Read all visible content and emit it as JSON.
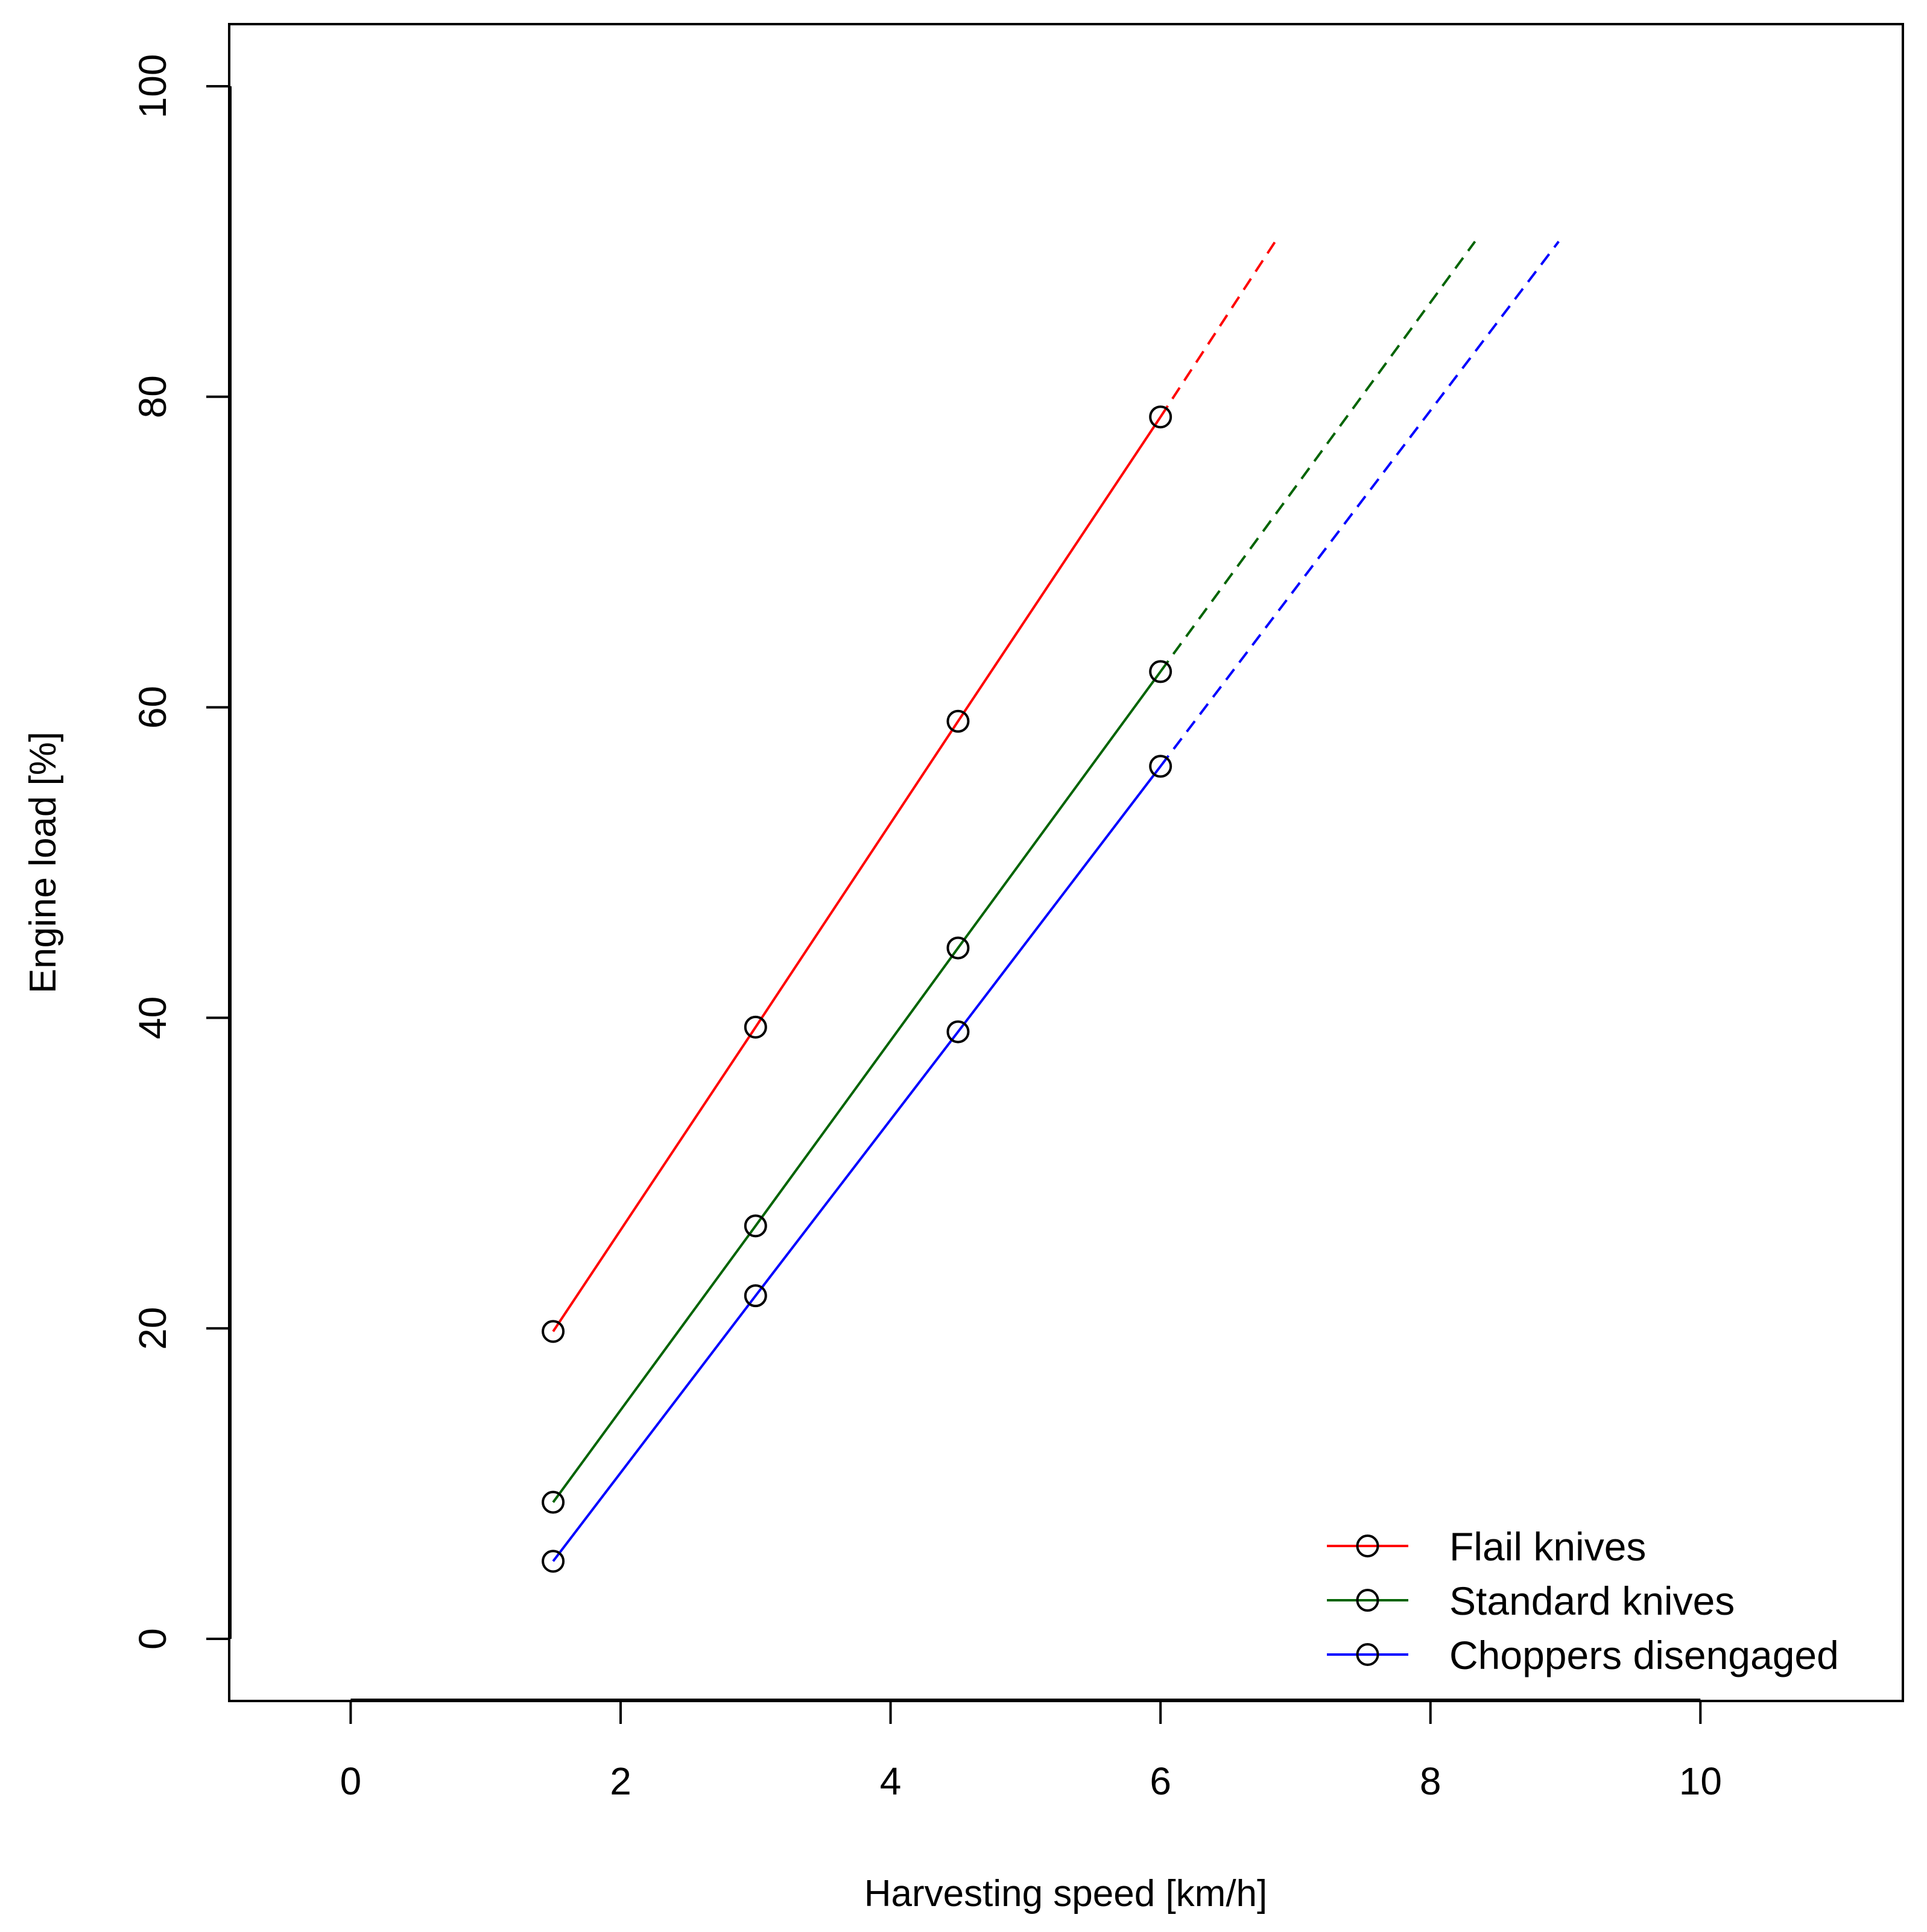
{
  "chart_data": {
    "type": "line",
    "title": "",
    "xlabel": "Harvesting speed [km/h]",
    "ylabel": "Engine load [%]",
    "xlim": [
      -0.9,
      11.5
    ],
    "ylim": [
      -4,
      104
    ],
    "x_ticks": [
      0,
      2,
      4,
      6,
      8,
      10
    ],
    "y_ticks": [
      0,
      20,
      40,
      60,
      80,
      100
    ],
    "x_tick_labels": [
      "0",
      "2",
      "4",
      "6",
      "8",
      "10"
    ],
    "y_tick_labels": [
      "0",
      "20",
      "40",
      "60",
      "80",
      "100"
    ],
    "grid": false,
    "legend_position": "bottom-right",
    "series": [
      {
        "name": "Flail knives",
        "color": "#ff0000",
        "x": [
          1.5,
          3.0,
          4.5,
          6.0
        ],
        "y": [
          19.8,
          39.4,
          59.1,
          78.7
        ],
        "extrapolation": {
          "x": [
            6.0,
            6.85
          ],
          "y": [
            78.7,
            90.0
          ],
          "style": "dashed"
        }
      },
      {
        "name": "Standard knives",
        "color": "#006400",
        "x": [
          1.5,
          3.0,
          4.5,
          6.0
        ],
        "y": [
          8.8,
          26.6,
          44.5,
          62.3
        ],
        "extrapolation": {
          "x": [
            6.0,
            8.33
          ],
          "y": [
            62.3,
            90.0
          ],
          "style": "dashed"
        }
      },
      {
        "name": "Choppers disengaged",
        "color": "#0000ff",
        "x": [
          1.5,
          3.0,
          4.5,
          6.0
        ],
        "y": [
          5.0,
          22.1,
          39.1,
          56.2
        ],
        "extrapolation": {
          "x": [
            6.0,
            8.95
          ],
          "y": [
            56.2,
            90.0
          ],
          "style": "dashed"
        }
      }
    ]
  }
}
